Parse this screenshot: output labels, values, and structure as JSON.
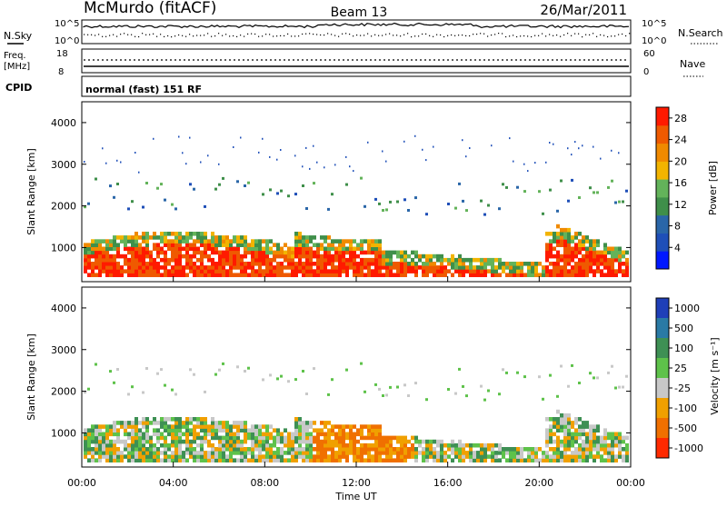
{
  "header": {
    "station": "McMurdo (fitACF)",
    "beam": "Beam 13",
    "date": "26/Mar/2011"
  },
  "noise_panel": {
    "left_label": "N.Sky",
    "right_label": "N.Search",
    "left_ticks": [
      "10^5",
      "10^0"
    ],
    "right_ticks": [
      "10^5",
      "10^0"
    ]
  },
  "freq_panel": {
    "left_label_1": "Freq.",
    "left_label_2": "[MHz]",
    "right_label": "Nave",
    "left_ticks": [
      "18",
      "8"
    ],
    "right_ticks": [
      "60",
      "0"
    ]
  },
  "cpid_panel": {
    "label": "CPID",
    "mode_text": "normal (fast) 151 RF"
  },
  "colors": {
    "power_scale": [
      "#0018ff",
      "#1f4fb8",
      "#2a66a8",
      "#3f8f4a",
      "#63b35a",
      "#f2b400",
      "#f08a00",
      "#ef5a00",
      "#ff1a00"
    ],
    "velocity_scale": [
      "#1f3fb8",
      "#2a7aa5",
      "#3e9054",
      "#5ec24a",
      "#c8c8c8",
      "#f0a000",
      "#f07000",
      "#ff2a00"
    ]
  },
  "chart_data": [
    {
      "type": "heatmap",
      "title": "",
      "xlabel": "",
      "ylabel": "Slant Range [km]",
      "x_ticks": [
        "00:00",
        "04:00",
        "08:00",
        "12:00",
        "16:00",
        "20:00",
        "00:00"
      ],
      "y_ticks": [
        "1000",
        "2000",
        "3000",
        "4000"
      ],
      "ylim": [
        180,
        4500
      ],
      "colorbar": {
        "label": "Power [dB]",
        "ticks": [
          "4",
          "8",
          "12",
          "16",
          "20",
          "24",
          "28"
        ],
        "range": [
          0,
          30
        ]
      }
    },
    {
      "type": "heatmap",
      "title": "",
      "xlabel": "Time UT",
      "ylabel": "Slant Range [km]",
      "x_ticks": [
        "00:00",
        "04:00",
        "08:00",
        "12:00",
        "16:00",
        "20:00",
        "00:00"
      ],
      "y_ticks": [
        "1000",
        "2000",
        "3000",
        "4000"
      ],
      "ylim": [
        180,
        4500
      ],
      "colorbar": {
        "label": "Velocity [m s⁻¹]",
        "ticks": [
          "1000",
          "500",
          "100",
          "25",
          "-25",
          "-100",
          "-500",
          "-1000"
        ]
      }
    }
  ]
}
